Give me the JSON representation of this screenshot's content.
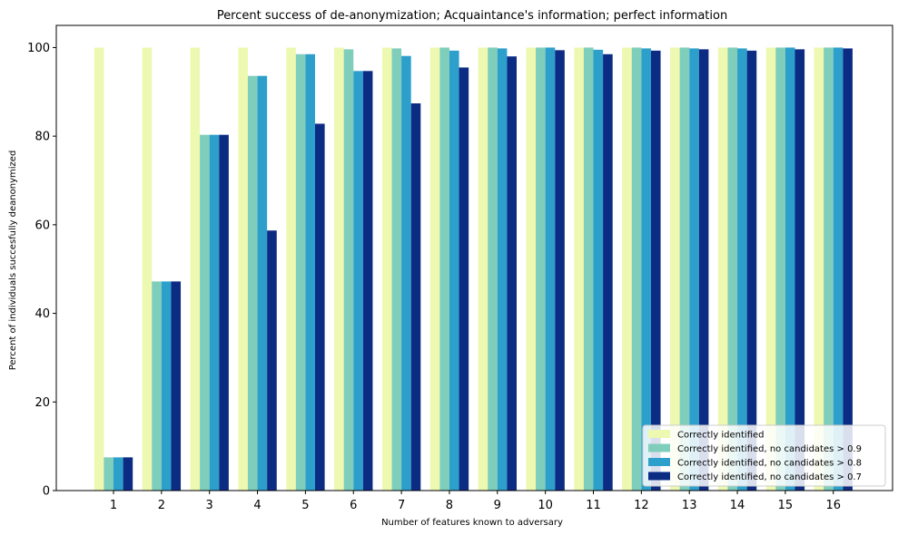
{
  "chart_data": {
    "type": "bar",
    "title": "Percent success of de-anonymization; Acquaintance's information; perfect information",
    "xlabel": "Number of features known to adversary",
    "ylabel": "Percent of individuals succesfully deanonymized",
    "categories": [
      "1",
      "2",
      "3",
      "4",
      "5",
      "6",
      "7",
      "8",
      "9",
      "10",
      "11",
      "12",
      "13",
      "14",
      "15",
      "16"
    ],
    "ylim": [
      0,
      105
    ],
    "yticks": [
      0,
      20,
      40,
      60,
      80,
      100
    ],
    "grid": false,
    "legend_position": "bottom-right",
    "series": [
      {
        "name": "Correctly identified",
        "color": "#edf8b1",
        "values": [
          100,
          100,
          100,
          100,
          100,
          100,
          100,
          100,
          100,
          100,
          100,
          100,
          100,
          100,
          100,
          100
        ]
      },
      {
        "name": "Correctly identified, no candidates > 0.9",
        "color": "#7fcdbb",
        "values": [
          7.5,
          47.2,
          80.3,
          93.6,
          98.5,
          99.6,
          99.8,
          100,
          100,
          100,
          100,
          100,
          100,
          100,
          100,
          100
        ]
      },
      {
        "name": "Correctly identified, no candidates > 0.8",
        "color": "#2c9fcb",
        "values": [
          7.5,
          47.2,
          80.3,
          93.6,
          98.5,
          94.7,
          98.1,
          99.3,
          99.8,
          100,
          99.5,
          99.8,
          99.8,
          99.8,
          100,
          100
        ]
      },
      {
        "name": "Correctly identified, no candidates > 0.7",
        "color": "#0c2c84",
        "values": [
          7.5,
          47.2,
          80.3,
          58.7,
          82.8,
          94.7,
          87.4,
          95.5,
          98.0,
          99.4,
          98.5,
          99.3,
          99.6,
          99.3,
          99.6,
          99.8
        ]
      }
    ]
  }
}
